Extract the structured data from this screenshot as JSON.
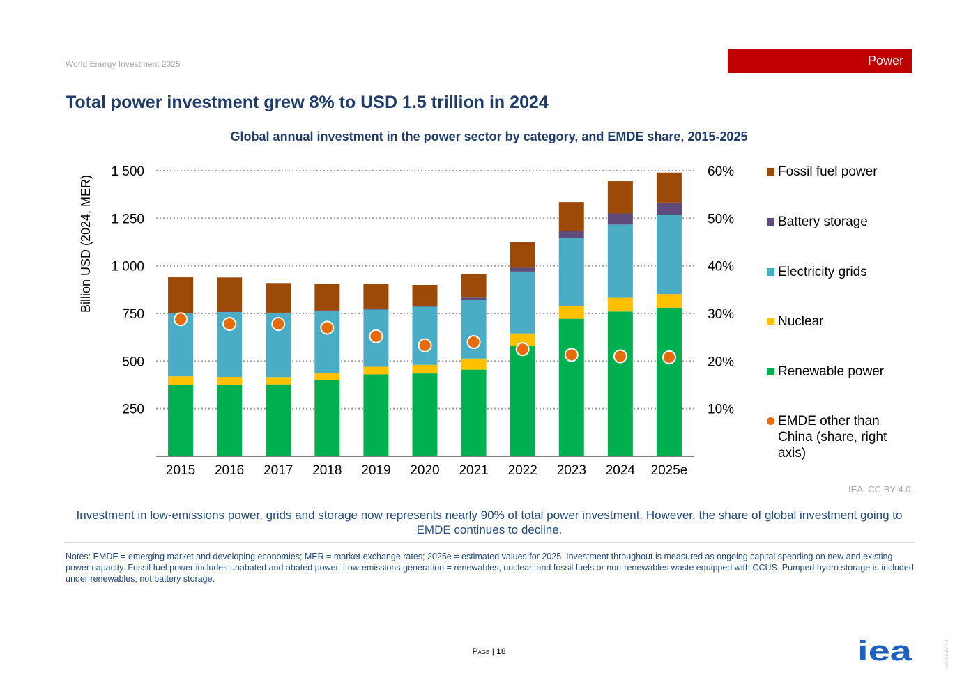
{
  "header": {
    "doc_title": "World Energy Investment 2025",
    "section_tag": "Power"
  },
  "page_title": "Total power investment grew 8% to USD 1.5 trillion in 2024",
  "chart_data": {
    "type": "bar",
    "stacked": true,
    "title": "Global annual investment in the power sector by category, and EMDE share, 2015-2025",
    "xlabel": "",
    "ylabel": "Billion USD (2024, MER)",
    "ylim": [
      0,
      1500
    ],
    "yticks": [
      250,
      500,
      750,
      1000,
      1250,
      1500
    ],
    "ytick_labels": [
      "250",
      "500",
      "750",
      "1 000",
      "1 250",
      "1 500"
    ],
    "y2lim": [
      0,
      60
    ],
    "y2ticks": [
      10,
      20,
      30,
      40,
      50,
      60
    ],
    "y2tick_labels": [
      "10%",
      "20%",
      "30%",
      "40%",
      "50%",
      "60%"
    ],
    "grid": "horizontal dotted",
    "legend_position": "right",
    "categories": [
      "2015",
      "2016",
      "2017",
      "2018",
      "2019",
      "2020",
      "2021",
      "2022",
      "2023",
      "2024",
      "2025e"
    ],
    "series": [
      {
        "name": "Renewable power",
        "color": "#00b050",
        "values": [
          375,
          375,
          378,
          402,
          430,
          435,
          455,
          580,
          722,
          760,
          780
        ]
      },
      {
        "name": "Nuclear",
        "color": "#ffc000",
        "values": [
          45,
          42,
          38,
          35,
          40,
          45,
          58,
          65,
          68,
          72,
          72
        ]
      },
      {
        "name": "Electricity grids",
        "color": "#4bacc6",
        "values": [
          330,
          340,
          335,
          325,
          300,
          305,
          310,
          325,
          355,
          385,
          415
        ]
      },
      {
        "name": "Battery storage",
        "color": "#604a7b",
        "values": [
          2,
          2,
          3,
          4,
          4,
          5,
          10,
          20,
          40,
          58,
          65
        ]
      },
      {
        "name": "Fossil fuel power",
        "color": "#9c4a07",
        "values": [
          188,
          180,
          156,
          140,
          131,
          110,
          122,
          135,
          150,
          170,
          158
        ]
      }
    ],
    "line_series": {
      "name": "EMDE other than China (share, right axis)",
      "color": "#e46c0a",
      "axis": "right",
      "values": [
        28.8,
        27.8,
        27.8,
        27.0,
        25.2,
        23.3,
        24.0,
        22.5,
        21.3,
        21.0,
        20.8
      ]
    },
    "legend_order": [
      "Fossil fuel power",
      "Battery storage",
      "Electricity grids",
      "Nuclear",
      "Renewable power",
      "EMDE other than China (share, right axis)"
    ]
  },
  "credit": "IEA. CC BY 4.0.",
  "takeaway": "Investment in low-emissions power, grids and storage now represents nearly 90% of total power investment. However, the share of global investment going to EMDE continues to decline.",
  "notes": "Notes: EMDE = emerging market and developing economies; MER = market exchange rates; 2025e = estimated values for 2025. Investment throughout is measured as ongoing capital spending on new and existing power capacity. Fossil fuel power includes unabated and abated power. Low-emissions generation = renewables, nuclear, and fossil fuels or non-renewables waste equipped with CCUS. Pumped hydro storage is included under renewables, not battery storage.",
  "footer": {
    "page_word": "Page",
    "page_number": "| 18",
    "logo_text": "iea",
    "vertical_credit": "IEA. CC BY 4.0."
  }
}
